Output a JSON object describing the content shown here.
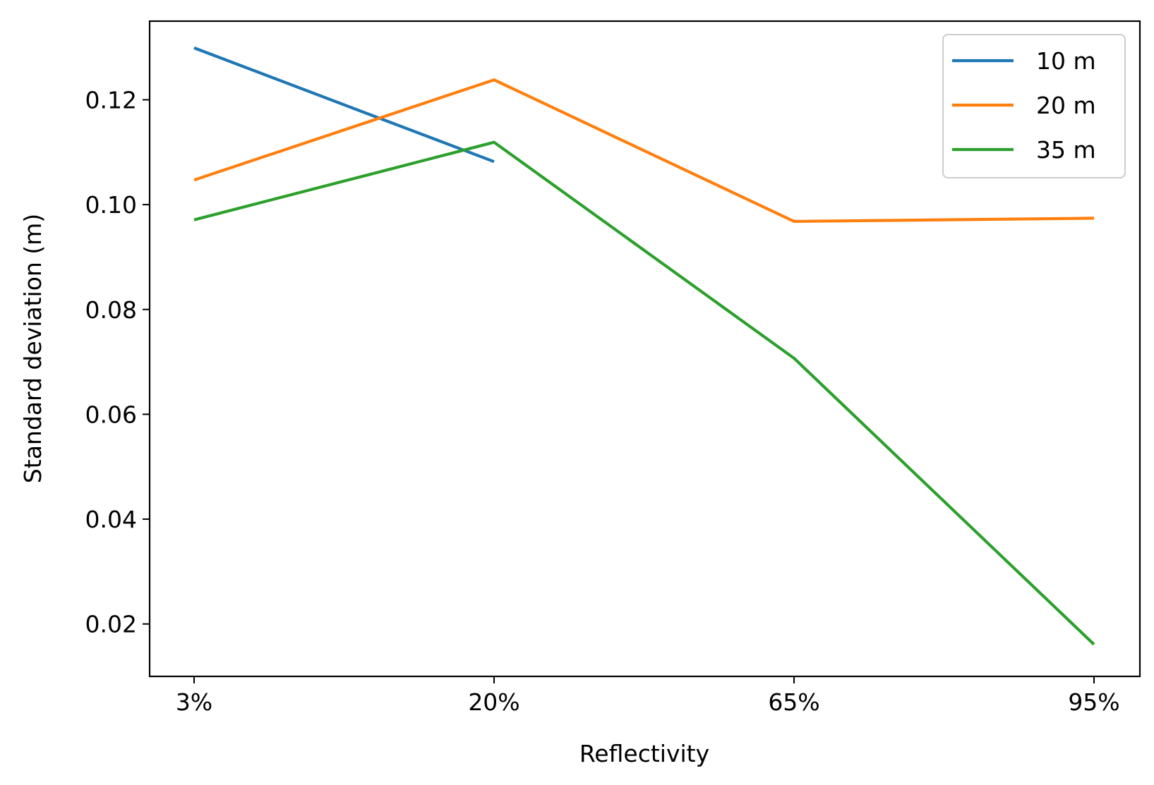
{
  "chart_data": {
    "type": "line",
    "categories": [
      "3%",
      "20%",
      "65%",
      "95%"
    ],
    "series": [
      {
        "name": "10 m",
        "color": "#1f77b4",
        "values": [
          0.1299,
          0.1082,
          null,
          null
        ]
      },
      {
        "name": "20 m",
        "color": "#ff7f0e",
        "values": [
          0.1047,
          0.1238,
          0.0968,
          0.0974
        ]
      },
      {
        "name": "35 m",
        "color": "#2ca02c",
        "values": [
          0.0971,
          0.1119,
          0.0707,
          0.0161
        ]
      }
    ],
    "xlabel": "Reflectivity",
    "ylabel": "Standard deviation (m)",
    "ylim": [
      0.01,
      0.135
    ],
    "yticks": [
      0.02,
      0.04,
      0.06,
      0.08,
      0.1,
      0.12
    ],
    "ytick_labels": [
      "0.02",
      "0.04",
      "0.06",
      "0.08",
      "0.10",
      "0.12"
    ],
    "grid": false,
    "legend": "top-right"
  }
}
